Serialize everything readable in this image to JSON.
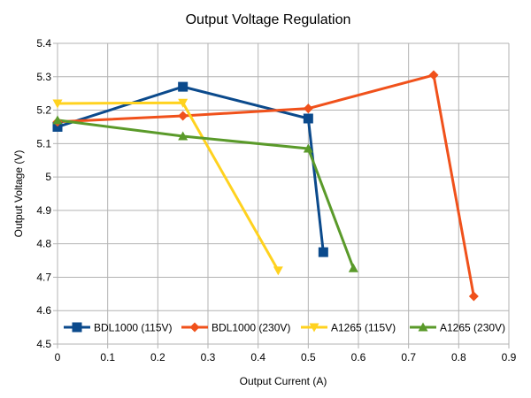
{
  "chart_data": {
    "type": "line",
    "title": "Output Voltage Regulation",
    "xlabel": "Output Current (A)",
    "ylabel": "Output Voltage (V)",
    "xlim": [
      0,
      0.9
    ],
    "ylim": [
      4.5,
      5.4
    ],
    "xticks": [
      "0",
      "0.1",
      "0.2",
      "0.3",
      "0.4",
      "0.5",
      "0.6",
      "0.7",
      "0.8",
      "0.9"
    ],
    "yticks": [
      "4.5",
      "4.6",
      "4.7",
      "4.8",
      "4.9",
      "5",
      "5.1",
      "5.2",
      "5.3",
      "5.4"
    ],
    "grid": true,
    "legend_position": "bottom-inside",
    "series": [
      {
        "name": "BDL1000 (115V)",
        "color": "#0b4a8c",
        "marker": "square",
        "points": [
          [
            0,
            5.15
          ],
          [
            0.25,
            5.27
          ],
          [
            0.5,
            5.175
          ],
          [
            0.53,
            4.775
          ]
        ]
      },
      {
        "name": "BDL1000 (230V)",
        "color": "#f0511b",
        "marker": "diamond",
        "points": [
          [
            0,
            5.165
          ],
          [
            0.25,
            5.183
          ],
          [
            0.5,
            5.205
          ],
          [
            0.75,
            5.305
          ],
          [
            0.83,
            4.643
          ]
        ]
      },
      {
        "name": "A1265 (115V)",
        "color": "#ffd21f",
        "marker": "triangle-down",
        "points": [
          [
            0,
            5.22
          ],
          [
            0.25,
            5.222
          ],
          [
            0.44,
            4.72
          ]
        ]
      },
      {
        "name": "A1265 (230V)",
        "color": "#5a9a2a",
        "marker": "triangle-up",
        "points": [
          [
            0,
            5.17
          ],
          [
            0.25,
            5.122
          ],
          [
            0.5,
            5.085
          ],
          [
            0.59,
            4.727
          ]
        ]
      }
    ]
  }
}
